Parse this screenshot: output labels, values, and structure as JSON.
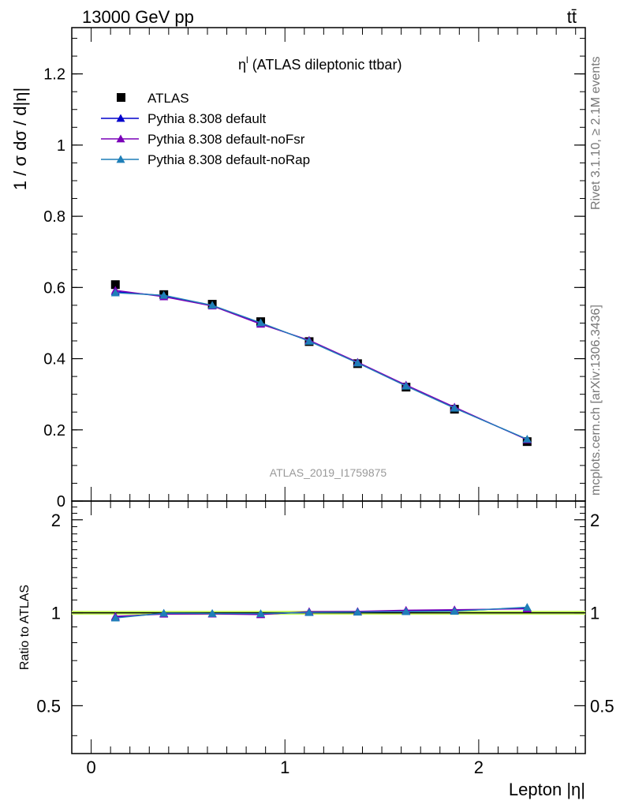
{
  "header": {
    "energy_label": "13000 GeV pp",
    "process_label": "tt̄"
  },
  "side_text": {
    "rivet": "Rivet 3.1.10, ≥ 2.1M events",
    "source": "mcplots.cern.ch [arXiv:1306.3436]"
  },
  "chart_data": [
    {
      "type": "line",
      "panel": "main",
      "title": "η",
      "title_sup": "l",
      "title_rest": " (ATLAS dileptonic ttbar)",
      "ylabel": "1 / σ  dσ / d|η|",
      "watermark": "ATLAS_2019_I1759875",
      "xlim": [
        -0.1,
        2.55
      ],
      "ylim": [
        0,
        1.33
      ],
      "yticks": [
        0,
        0.2,
        0.4,
        0.6,
        0.8,
        1,
        1.2
      ],
      "ytick_labels": [
        "0",
        "0.2",
        "0.4",
        "0.6",
        "0.8",
        "1",
        "1.2"
      ],
      "x": [
        0.125,
        0.375,
        0.625,
        0.875,
        1.125,
        1.375,
        1.625,
        1.875,
        2.25
      ],
      "series": [
        {
          "name": "ATLAS",
          "style": "data",
          "color": "#000000",
          "values": [
            0.608,
            0.58,
            0.553,
            0.504,
            0.448,
            0.386,
            0.32,
            0.258,
            0.167
          ]
        },
        {
          "name": "Pythia 8.308 default",
          "style": "line",
          "color": "#0000cc",
          "values": [
            0.588,
            0.577,
            0.549,
            0.499,
            0.45,
            0.389,
            0.324,
            0.262,
            0.173
          ]
        },
        {
          "name": "Pythia 8.308 default-noFsr",
          "style": "line",
          "color": "#7a00b8",
          "values": [
            0.592,
            0.574,
            0.548,
            0.497,
            0.452,
            0.39,
            0.326,
            0.264,
            0.172
          ]
        },
        {
          "name": "Pythia 8.308 default-noRap",
          "style": "line",
          "color": "#1f7fb8",
          "values": [
            0.585,
            0.578,
            0.55,
            0.501,
            0.449,
            0.388,
            0.323,
            0.261,
            0.174
          ]
        }
      ],
      "legend": "top-left"
    },
    {
      "type": "line",
      "panel": "ratio",
      "ylabel": "Ratio to ATLAS",
      "xlabel": "Lepton |η|",
      "xlim": [
        -0.1,
        2.55
      ],
      "xticks": [
        0,
        1,
        2
      ],
      "xtick_labels": [
        "0",
        "1",
        "2"
      ],
      "ylim": [
        0.35,
        2.3
      ],
      "yticks": [
        0.5,
        1,
        2
      ],
      "ytick_labels": [
        "0.5",
        "1",
        "2"
      ],
      "band_color": "#ccff66",
      "x": [
        0.125,
        0.375,
        0.625,
        0.875,
        1.125,
        1.375,
        1.625,
        1.875,
        2.25
      ],
      "series": [
        {
          "name": "Pythia 8.308 default",
          "color": "#0000cc",
          "values": [
            0.968,
            0.995,
            0.993,
            0.99,
            1.004,
            1.008,
            1.013,
            1.016,
            1.036
          ]
        },
        {
          "name": "Pythia 8.308 default-noFsr",
          "color": "#7a00b8",
          "values": [
            0.974,
            0.99,
            0.991,
            0.986,
            1.009,
            1.01,
            1.019,
            1.023,
            1.03
          ]
        },
        {
          "name": "Pythia 8.308 default-noRap",
          "color": "#1f7fb8",
          "values": [
            0.962,
            0.997,
            0.995,
            0.994,
            1.002,
            1.005,
            1.009,
            1.012,
            1.042
          ]
        }
      ]
    }
  ]
}
